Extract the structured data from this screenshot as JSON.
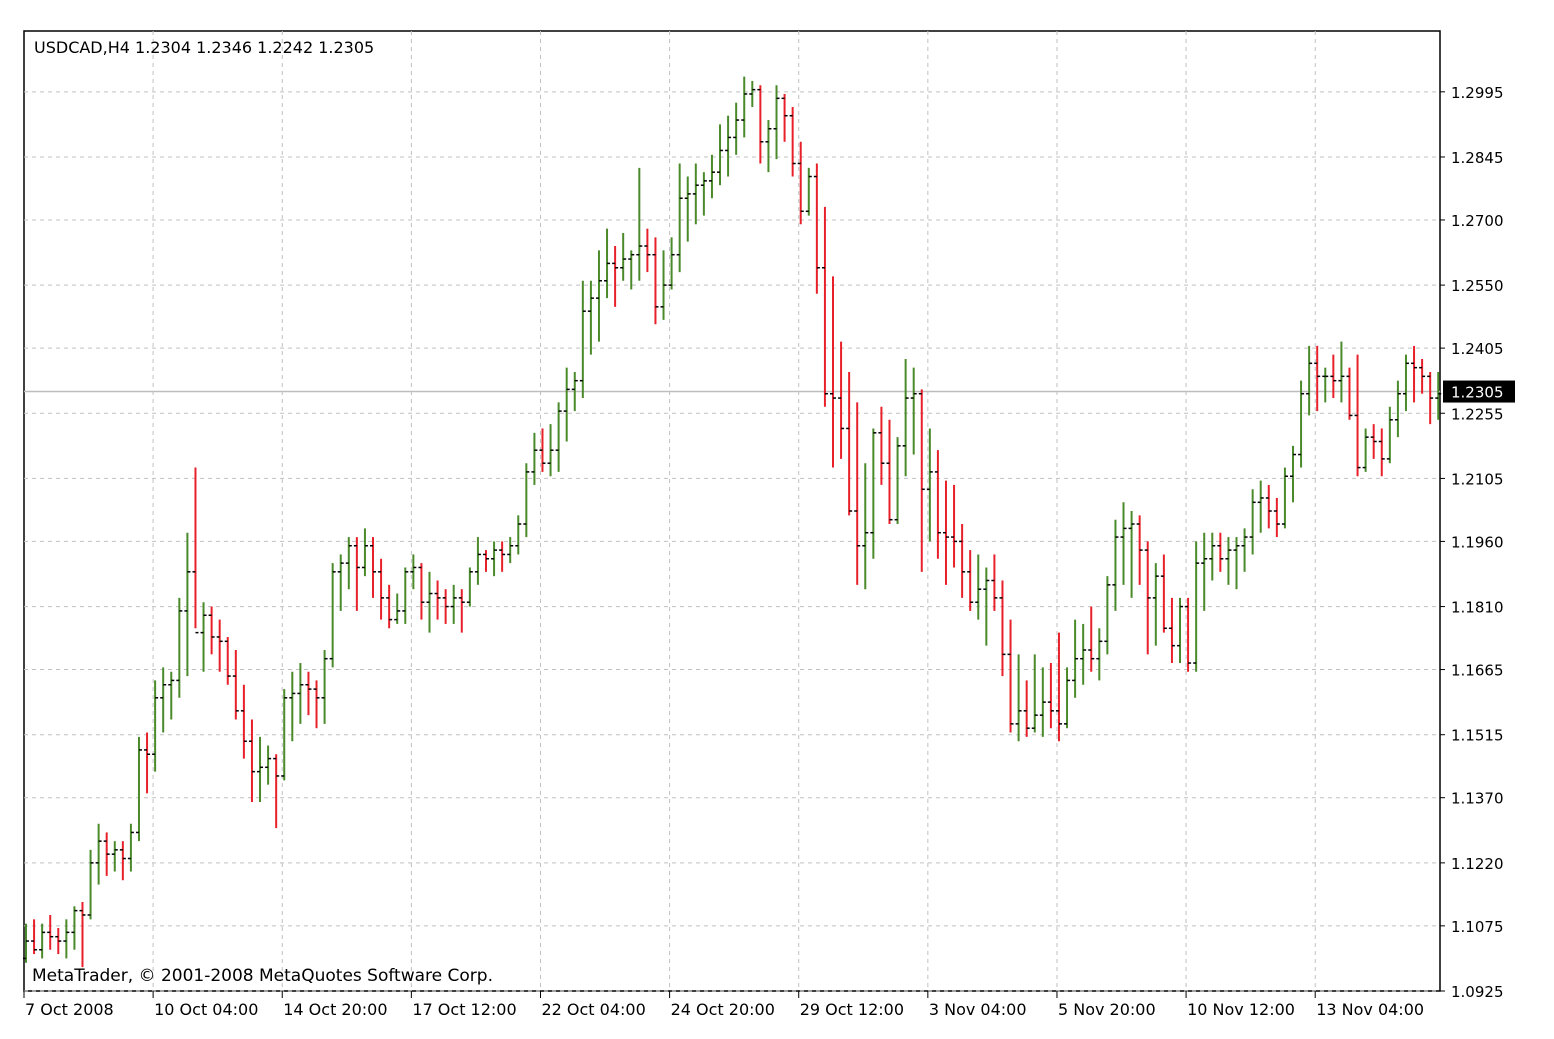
{
  "chart_data": {
    "type": "ohlc-bar",
    "symbol_header": "USDCAD,H4  1.2304 1.2346 1.2242 1.2305",
    "copyright": "MetaTrader, © 2001-2008 MetaQuotes Software Corp.",
    "current_price": 1.2305,
    "current_price_label": "1.2305",
    "ylim": [
      1.0925,
      1.3135
    ],
    "y_ticks": [
      {
        "value": 1.2995,
        "label": "1.2995"
      },
      {
        "value": 1.2845,
        "label": "1.2845"
      },
      {
        "value": 1.27,
        "label": "1.2700"
      },
      {
        "value": 1.255,
        "label": "1.2550"
      },
      {
        "value": 1.2405,
        "label": "1.2405"
      },
      {
        "value": 1.2255,
        "label": "1.2255"
      },
      {
        "value": 1.2105,
        "label": "1.2105"
      },
      {
        "value": 1.196,
        "label": "1.1960"
      },
      {
        "value": 1.181,
        "label": "1.1810"
      },
      {
        "value": 1.1665,
        "label": "1.1665"
      },
      {
        "value": 1.1515,
        "label": "1.1515"
      },
      {
        "value": 1.137,
        "label": "1.1370"
      },
      {
        "value": 1.122,
        "label": "1.1220"
      },
      {
        "value": 1.1075,
        "label": "1.1075"
      },
      {
        "value": 1.0925,
        "label": "1.0925"
      }
    ],
    "x_ticks": [
      {
        "bar": 0,
        "label": "7 Oct 2008"
      },
      {
        "bar": 16,
        "label": "10 Oct 04:00"
      },
      {
        "bar": 32,
        "label": "14 Oct 20:00"
      },
      {
        "bar": 48,
        "label": "17 Oct 12:00"
      },
      {
        "bar": 64,
        "label": "22 Oct 04:00"
      },
      {
        "bar": 80,
        "label": "24 Oct 20:00"
      },
      {
        "bar": 96,
        "label": "29 Oct 12:00"
      },
      {
        "bar": 112,
        "label": "3 Nov 04:00"
      },
      {
        "bar": 128,
        "label": "5 Nov 20:00"
      },
      {
        "bar": 144,
        "label": "10 Nov 12:00"
      },
      {
        "bar": 160,
        "label": "13 Nov 04:00"
      }
    ],
    "colors": {
      "up": "#4a8a2a",
      "down": "#e8202a",
      "grid": "#c0c0c0",
      "axis": "#000000",
      "price_line": "#bdbdbd",
      "price_tag_bg": "#000000",
      "price_tag_text": "#ffffff"
    },
    "grid": true,
    "bars": [
      [
        1.1,
        1.108,
        1.099,
        1.104
      ],
      [
        1.104,
        1.109,
        1.101,
        1.102
      ],
      [
        1.102,
        1.108,
        1.1,
        1.106
      ],
      [
        1.106,
        1.11,
        1.102,
        1.105
      ],
      [
        1.105,
        1.107,
        1.101,
        1.104
      ],
      [
        1.104,
        1.109,
        1.1,
        1.106
      ],
      [
        1.106,
        1.112,
        1.102,
        1.111
      ],
      [
        1.111,
        1.113,
        1.098,
        1.11
      ],
      [
        1.11,
        1.125,
        1.109,
        1.122
      ],
      [
        1.122,
        1.131,
        1.117,
        1.127
      ],
      [
        1.127,
        1.129,
        1.119,
        1.124
      ],
      [
        1.124,
        1.127,
        1.12,
        1.125
      ],
      [
        1.125,
        1.127,
        1.118,
        1.123
      ],
      [
        1.123,
        1.131,
        1.12,
        1.129
      ],
      [
        1.129,
        1.151,
        1.127,
        1.148
      ],
      [
        1.148,
        1.152,
        1.138,
        1.147
      ],
      [
        1.147,
        1.164,
        1.143,
        1.16
      ],
      [
        1.16,
        1.167,
        1.152,
        1.163
      ],
      [
        1.163,
        1.166,
        1.155,
        1.164
      ],
      [
        1.164,
        1.183,
        1.16,
        1.18
      ],
      [
        1.18,
        1.198,
        1.165,
        1.189
      ],
      [
        1.189,
        1.213,
        1.176,
        1.175
      ],
      [
        1.175,
        1.182,
        1.166,
        1.179
      ],
      [
        1.179,
        1.181,
        1.17,
        1.174
      ],
      [
        1.174,
        1.178,
        1.166,
        1.173
      ],
      [
        1.173,
        1.174,
        1.163,
        1.165
      ],
      [
        1.165,
        1.171,
        1.155,
        1.157
      ],
      [
        1.157,
        1.163,
        1.146,
        1.15
      ],
      [
        1.15,
        1.155,
        1.136,
        1.143
      ],
      [
        1.143,
        1.151,
        1.136,
        1.144
      ],
      [
        1.144,
        1.149,
        1.14,
        1.146
      ],
      [
        1.146,
        1.147,
        1.13,
        1.142
      ],
      [
        1.142,
        1.162,
        1.141,
        1.16
      ],
      [
        1.16,
        1.166,
        1.15,
        1.161
      ],
      [
        1.161,
        1.168,
        1.154,
        1.163
      ],
      [
        1.163,
        1.166,
        1.156,
        1.162
      ],
      [
        1.162,
        1.164,
        1.153,
        1.16
      ],
      [
        1.16,
        1.171,
        1.154,
        1.169
      ],
      [
        1.169,
        1.191,
        1.167,
        1.189
      ],
      [
        1.189,
        1.193,
        1.18,
        1.191
      ],
      [
        1.191,
        1.197,
        1.185,
        1.195
      ],
      [
        1.195,
        1.197,
        1.18,
        1.19
      ],
      [
        1.19,
        1.199,
        1.188,
        1.195
      ],
      [
        1.195,
        1.197,
        1.183,
        1.189
      ],
      [
        1.189,
        1.192,
        1.178,
        1.183
      ],
      [
        1.183,
        1.186,
        1.176,
        1.178
      ],
      [
        1.178,
        1.184,
        1.177,
        1.18
      ],
      [
        1.18,
        1.19,
        1.177,
        1.189
      ],
      [
        1.189,
        1.193,
        1.185,
        1.19
      ],
      [
        1.19,
        1.191,
        1.178,
        1.182
      ],
      [
        1.182,
        1.189,
        1.175,
        1.184
      ],
      [
        1.184,
        1.187,
        1.178,
        1.183
      ],
      [
        1.183,
        1.185,
        1.177,
        1.181
      ],
      [
        1.181,
        1.186,
        1.177,
        1.183
      ],
      [
        1.183,
        1.185,
        1.175,
        1.182
      ],
      [
        1.182,
        1.19,
        1.181,
        1.189
      ],
      [
        1.189,
        1.197,
        1.186,
        1.193
      ],
      [
        1.193,
        1.194,
        1.189,
        1.192
      ],
      [
        1.192,
        1.196,
        1.188,
        1.194
      ],
      [
        1.194,
        1.196,
        1.189,
        1.193
      ],
      [
        1.193,
        1.197,
        1.191,
        1.195
      ],
      [
        1.195,
        1.202,
        1.193,
        1.2
      ],
      [
        1.2,
        1.214,
        1.197,
        1.212
      ],
      [
        1.212,
        1.221,
        1.209,
        1.217
      ],
      [
        1.217,
        1.222,
        1.212,
        1.214
      ],
      [
        1.214,
        1.223,
        1.211,
        1.217
      ],
      [
        1.217,
        1.228,
        1.212,
        1.226
      ],
      [
        1.226,
        1.236,
        1.219,
        1.231
      ],
      [
        1.231,
        1.235,
        1.226,
        1.233
      ],
      [
        1.233,
        1.256,
        1.229,
        1.249
      ],
      [
        1.249,
        1.256,
        1.239,
        1.252
      ],
      [
        1.252,
        1.263,
        1.242,
        1.256
      ],
      [
        1.256,
        1.268,
        1.252,
        1.26
      ],
      [
        1.26,
        1.264,
        1.25,
        1.259
      ],
      [
        1.259,
        1.267,
        1.256,
        1.261
      ],
      [
        1.261,
        1.263,
        1.254,
        1.262
      ],
      [
        1.262,
        1.282,
        1.256,
        1.264
      ],
      [
        1.264,
        1.268,
        1.258,
        1.262
      ],
      [
        1.262,
        1.266,
        1.246,
        1.25
      ],
      [
        1.25,
        1.263,
        1.247,
        1.255
      ],
      [
        1.255,
        1.266,
        1.254,
        1.262
      ],
      [
        1.262,
        1.283,
        1.258,
        1.275
      ],
      [
        1.275,
        1.28,
        1.265,
        1.276
      ],
      [
        1.276,
        1.283,
        1.269,
        1.278
      ],
      [
        1.278,
        1.281,
        1.271,
        1.279
      ],
      [
        1.279,
        1.285,
        1.275,
        1.281
      ],
      [
        1.281,
        1.292,
        1.278,
        1.286
      ],
      [
        1.286,
        1.294,
        1.28,
        1.289
      ],
      [
        1.289,
        1.297,
        1.285,
        1.293
      ],
      [
        1.293,
        1.303,
        1.289,
        1.299
      ],
      [
        1.299,
        1.302,
        1.296,
        1.3
      ],
      [
        1.3,
        1.301,
        1.283,
        1.288
      ],
      [
        1.288,
        1.293,
        1.281,
        1.291
      ],
      [
        1.291,
        1.301,
        1.284,
        1.298
      ],
      [
        1.298,
        1.299,
        1.288,
        1.294
      ],
      [
        1.294,
        1.296,
        1.28,
        1.283
      ],
      [
        1.283,
        1.288,
        1.269,
        1.272
      ],
      [
        1.272,
        1.282,
        1.271,
        1.28
      ],
      [
        1.28,
        1.283,
        1.253,
        1.259
      ],
      [
        1.259,
        1.273,
        1.227,
        1.23
      ],
      [
        1.23,
        1.257,
        1.213,
        1.229
      ],
      [
        1.229,
        1.242,
        1.215,
        1.222
      ],
      [
        1.222,
        1.235,
        1.202,
        1.203
      ],
      [
        1.203,
        1.228,
        1.186,
        1.195
      ],
      [
        1.195,
        1.214,
        1.185,
        1.198
      ],
      [
        1.198,
        1.222,
        1.192,
        1.221
      ],
      [
        1.221,
        1.227,
        1.209,
        1.214
      ],
      [
        1.214,
        1.224,
        1.2,
        1.201
      ],
      [
        1.201,
        1.22,
        1.2,
        1.218
      ],
      [
        1.218,
        1.238,
        1.211,
        1.229
      ],
      [
        1.229,
        1.236,
        1.216,
        1.23
      ],
      [
        1.23,
        1.231,
        1.189,
        1.208
      ],
      [
        1.208,
        1.222,
        1.196,
        1.212
      ],
      [
        1.212,
        1.217,
        1.192,
        1.198
      ],
      [
        1.198,
        1.21,
        1.186,
        1.197
      ],
      [
        1.197,
        1.209,
        1.19,
        1.196
      ],
      [
        1.196,
        1.2,
        1.183,
        1.189
      ],
      [
        1.189,
        1.194,
        1.18,
        1.182
      ],
      [
        1.182,
        1.193,
        1.178,
        1.185
      ],
      [
        1.185,
        1.19,
        1.172,
        1.187
      ],
      [
        1.187,
        1.193,
        1.18,
        1.183
      ],
      [
        1.183,
        1.187,
        1.165,
        1.17
      ],
      [
        1.17,
        1.178,
        1.152,
        1.154
      ],
      [
        1.154,
        1.17,
        1.15,
        1.157
      ],
      [
        1.157,
        1.164,
        1.151,
        1.153
      ],
      [
        1.153,
        1.17,
        1.152,
        1.156
      ],
      [
        1.156,
        1.167,
        1.151,
        1.159
      ],
      [
        1.159,
        1.168,
        1.153,
        1.157
      ],
      [
        1.157,
        1.175,
        1.15,
        1.154
      ],
      [
        1.154,
        1.167,
        1.153,
        1.164
      ],
      [
        1.164,
        1.178,
        1.16,
        1.169
      ],
      [
        1.169,
        1.177,
        1.163,
        1.171
      ],
      [
        1.171,
        1.181,
        1.166,
        1.169
      ],
      [
        1.169,
        1.176,
        1.164,
        1.173
      ],
      [
        1.173,
        1.188,
        1.17,
        1.186
      ],
      [
        1.186,
        1.201,
        1.18,
        1.197
      ],
      [
        1.197,
        1.205,
        1.186,
        1.199
      ],
      [
        1.199,
        1.203,
        1.183,
        1.2
      ],
      [
        1.2,
        1.202,
        1.186,
        1.194
      ],
      [
        1.194,
        1.196,
        1.17,
        1.183
      ],
      [
        1.183,
        1.191,
        1.172,
        1.188
      ],
      [
        1.188,
        1.193,
        1.175,
        1.176
      ],
      [
        1.176,
        1.183,
        1.168,
        1.172
      ],
      [
        1.172,
        1.183,
        1.168,
        1.181
      ],
      [
        1.181,
        1.183,
        1.166,
        1.168
      ],
      [
        1.168,
        1.196,
        1.166,
        1.191
      ],
      [
        1.191,
        1.198,
        1.18,
        1.192
      ],
      [
        1.192,
        1.198,
        1.187,
        1.195
      ],
      [
        1.195,
        1.198,
        1.189,
        1.192
      ],
      [
        1.192,
        1.197,
        1.186,
        1.194
      ],
      [
        1.194,
        1.197,
        1.185,
        1.195
      ],
      [
        1.195,
        1.199,
        1.189,
        1.197
      ],
      [
        1.197,
        1.208,
        1.193,
        1.205
      ],
      [
        1.205,
        1.21,
        1.198,
        1.206
      ],
      [
        1.206,
        1.209,
        1.199,
        1.203
      ],
      [
        1.203,
        1.206,
        1.197,
        1.2
      ],
      [
        1.2,
        1.213,
        1.199,
        1.211
      ],
      [
        1.211,
        1.218,
        1.205,
        1.216
      ],
      [
        1.216,
        1.233,
        1.213,
        1.23
      ],
      [
        1.23,
        1.241,
        1.225,
        1.237
      ],
      [
        1.237,
        1.241,
        1.226,
        1.234
      ],
      [
        1.234,
        1.236,
        1.228,
        1.234
      ],
      [
        1.234,
        1.239,
        1.229,
        1.233
      ],
      [
        1.233,
        1.242,
        1.228,
        1.234
      ],
      [
        1.234,
        1.236,
        1.224,
        1.225
      ],
      [
        1.225,
        1.239,
        1.211,
        1.213
      ],
      [
        1.213,
        1.222,
        1.212,
        1.22
      ],
      [
        1.22,
        1.223,
        1.215,
        1.219
      ],
      [
        1.219,
        1.222,
        1.211,
        1.215
      ],
      [
        1.215,
        1.227,
        1.214,
        1.224
      ],
      [
        1.224,
        1.233,
        1.22,
        1.23
      ],
      [
        1.23,
        1.239,
        1.226,
        1.237
      ],
      [
        1.237,
        1.241,
        1.228,
        1.236
      ],
      [
        1.236,
        1.238,
        1.23,
        1.234
      ],
      [
        1.234,
        1.235,
        1.223,
        1.229
      ],
      [
        1.229,
        1.235,
        1.224,
        1.23
      ]
    ]
  }
}
